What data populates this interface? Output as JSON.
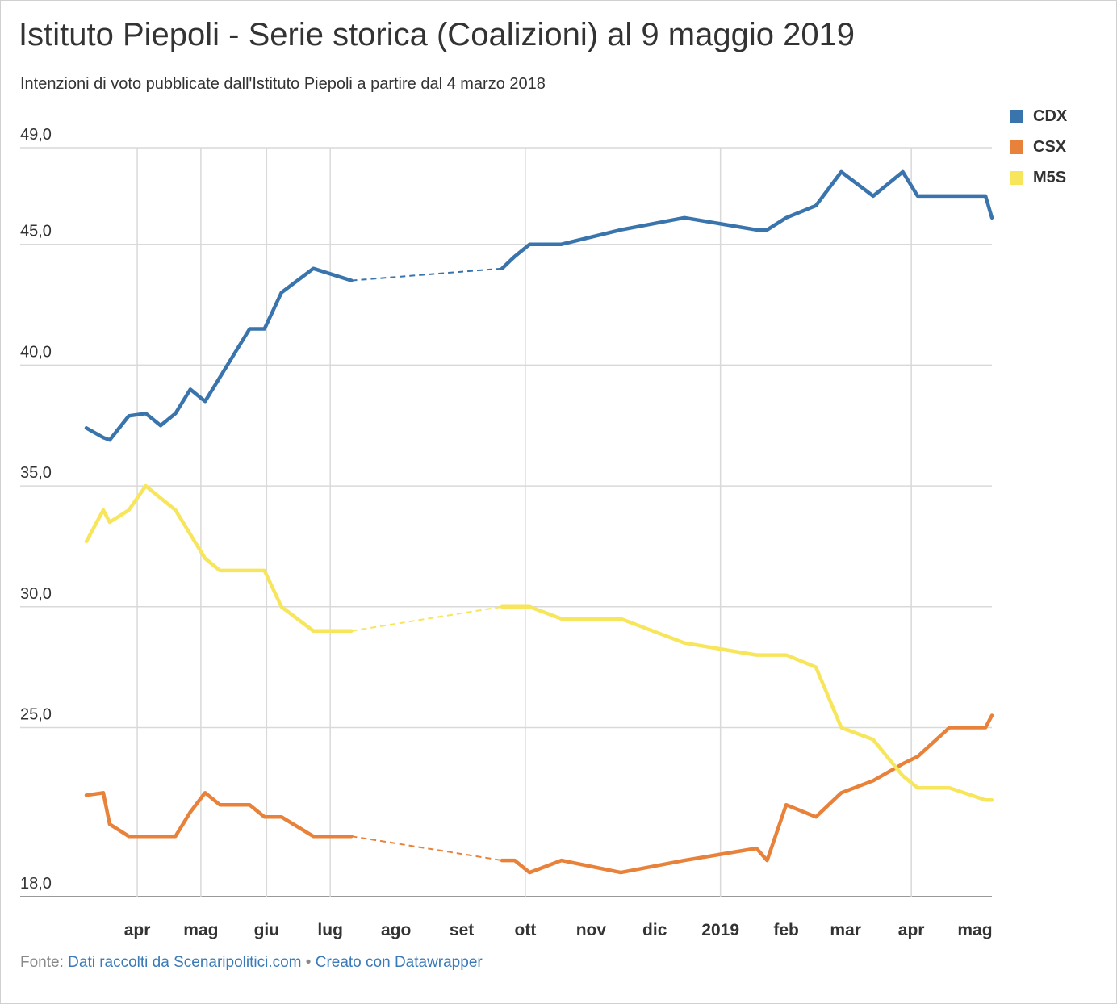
{
  "title": "Istituto Piepoli - Serie storica (Coalizioni) al 9 maggio 2019",
  "subtitle": "Intenzioni di voto pubblicate dall'Istituto Piepoli a partire dal 4 marzo 2018",
  "footer": {
    "prefix": "Fonte:",
    "source": "Dati raccolti da Scenaripolitici.com",
    "separator": "•",
    "credit": "Creato con Datawrapper"
  },
  "chart_data": {
    "type": "line",
    "ylim": [
      18,
      49
    ],
    "xlim": [
      "2018-03-08",
      "2019-05-09"
    ],
    "grid": true,
    "legend_position": "top-right",
    "y_ticks": [
      {
        "value": 49,
        "label": "49,0"
      },
      {
        "value": 45,
        "label": "45,0"
      },
      {
        "value": 40,
        "label": "40,0"
      },
      {
        "value": 35,
        "label": "35,0"
      },
      {
        "value": 30,
        "label": "30,0"
      },
      {
        "value": 25,
        "label": "25,0"
      },
      {
        "value": 18,
        "label": "18,0"
      }
    ],
    "x_ticks": [
      {
        "date": "2018-04-01",
        "label": "apr",
        "grid": true
      },
      {
        "date": "2018-05-01",
        "label": "mag",
        "grid": true
      },
      {
        "date": "2018-06-01",
        "label": "giu",
        "grid": true
      },
      {
        "date": "2018-07-01",
        "label": "lug",
        "grid": true
      },
      {
        "date": "2018-08-01",
        "label": "ago",
        "grid": false
      },
      {
        "date": "2018-09-01",
        "label": "set",
        "grid": false
      },
      {
        "date": "2018-10-01",
        "label": "ott",
        "grid": true
      },
      {
        "date": "2018-11-01",
        "label": "nov",
        "grid": false
      },
      {
        "date": "2018-12-01",
        "label": "dic",
        "grid": false
      },
      {
        "date": "2019-01-01",
        "label": "2019",
        "grid": true
      },
      {
        "date": "2019-02-01",
        "label": "feb",
        "grid": false
      },
      {
        "date": "2019-03-01",
        "label": "mar",
        "grid": false
      },
      {
        "date": "2019-04-01",
        "label": "apr",
        "grid": true
      },
      {
        "date": "2019-05-01",
        "label": "mag",
        "grid": false
      }
    ],
    "gap": [
      "2018-07-11",
      "2018-09-20"
    ],
    "series": [
      {
        "name": "CDX",
        "color": "#3a74ad",
        "points": [
          [
            "2018-03-08",
            37.4
          ],
          [
            "2018-03-16",
            37.0
          ],
          [
            "2018-03-19",
            36.9
          ],
          [
            "2018-03-28",
            37.9
          ],
          [
            "2018-04-05",
            38.0
          ],
          [
            "2018-04-12",
            37.5
          ],
          [
            "2018-04-19",
            38.0
          ],
          [
            "2018-04-26",
            39.0
          ],
          [
            "2018-05-03",
            38.5
          ],
          [
            "2018-05-10",
            39.5
          ],
          [
            "2018-05-24",
            41.5
          ],
          [
            "2018-05-31",
            41.5
          ],
          [
            "2018-06-08",
            43.0
          ],
          [
            "2018-06-23",
            44.0
          ],
          [
            "2018-07-11",
            43.5
          ],
          [
            "2018-09-20",
            44.0
          ],
          [
            "2018-09-26",
            44.5
          ],
          [
            "2018-10-03",
            45.0
          ],
          [
            "2018-10-18",
            45.0
          ],
          [
            "2018-11-15",
            45.6
          ],
          [
            "2018-12-15",
            46.1
          ],
          [
            "2019-01-18",
            45.6
          ],
          [
            "2019-01-23",
            45.6
          ],
          [
            "2019-02-01",
            46.1
          ],
          [
            "2019-02-15",
            46.6
          ],
          [
            "2019-02-27",
            48.0
          ],
          [
            "2019-03-14",
            47.0
          ],
          [
            "2019-03-28",
            48.0
          ],
          [
            "2019-04-04",
            47.0
          ],
          [
            "2019-04-19",
            47.0
          ],
          [
            "2019-05-06",
            47.0
          ],
          [
            "2019-05-09",
            46.1
          ]
        ]
      },
      {
        "name": "CSX",
        "color": "#e8823a",
        "points": [
          [
            "2018-03-08",
            22.2
          ],
          [
            "2018-03-16",
            22.3
          ],
          [
            "2018-03-19",
            21.0
          ],
          [
            "2018-03-28",
            20.5
          ],
          [
            "2018-04-05",
            20.5
          ],
          [
            "2018-04-12",
            20.5
          ],
          [
            "2018-04-19",
            20.5
          ],
          [
            "2018-04-26",
            21.5
          ],
          [
            "2018-05-03",
            22.3
          ],
          [
            "2018-05-10",
            21.8
          ],
          [
            "2018-05-24",
            21.8
          ],
          [
            "2018-05-31",
            21.3
          ],
          [
            "2018-06-08",
            21.3
          ],
          [
            "2018-06-23",
            20.5
          ],
          [
            "2018-07-11",
            20.5
          ],
          [
            "2018-09-20",
            19.5
          ],
          [
            "2018-09-26",
            19.5
          ],
          [
            "2018-10-03",
            19.0
          ],
          [
            "2018-10-18",
            19.5
          ],
          [
            "2018-11-15",
            19.0
          ],
          [
            "2018-12-15",
            19.5
          ],
          [
            "2019-01-18",
            20.0
          ],
          [
            "2019-01-23",
            19.5
          ],
          [
            "2019-02-01",
            21.8
          ],
          [
            "2019-02-15",
            21.3
          ],
          [
            "2019-02-27",
            22.3
          ],
          [
            "2019-03-14",
            22.8
          ],
          [
            "2019-03-28",
            23.5
          ],
          [
            "2019-04-04",
            23.8
          ],
          [
            "2019-04-19",
            25.0
          ],
          [
            "2019-05-06",
            25.0
          ],
          [
            "2019-05-09",
            25.5
          ]
        ]
      },
      {
        "name": "M5S",
        "color": "#f7e65c",
        "points": [
          [
            "2018-03-08",
            32.7
          ],
          [
            "2018-03-16",
            34.0
          ],
          [
            "2018-03-19",
            33.5
          ],
          [
            "2018-03-28",
            34.0
          ],
          [
            "2018-04-05",
            35.0
          ],
          [
            "2018-04-12",
            34.5
          ],
          [
            "2018-04-19",
            34.0
          ],
          [
            "2018-04-26",
            33.0
          ],
          [
            "2018-05-03",
            32.0
          ],
          [
            "2018-05-10",
            31.5
          ],
          [
            "2018-05-24",
            31.5
          ],
          [
            "2018-05-31",
            31.5
          ],
          [
            "2018-06-08",
            30.0
          ],
          [
            "2018-06-23",
            29.0
          ],
          [
            "2018-07-11",
            29.0
          ],
          [
            "2018-09-20",
            30.0
          ],
          [
            "2018-09-26",
            30.0
          ],
          [
            "2018-10-03",
            30.0
          ],
          [
            "2018-10-18",
            29.5
          ],
          [
            "2018-11-15",
            29.5
          ],
          [
            "2018-12-15",
            28.5
          ],
          [
            "2019-01-18",
            28.0
          ],
          [
            "2019-01-23",
            28.0
          ],
          [
            "2019-02-01",
            28.0
          ],
          [
            "2019-02-15",
            27.5
          ],
          [
            "2019-02-27",
            25.0
          ],
          [
            "2019-03-14",
            24.5
          ],
          [
            "2019-03-28",
            23.0
          ],
          [
            "2019-04-04",
            22.5
          ],
          [
            "2019-04-19",
            22.5
          ],
          [
            "2019-05-06",
            22.0
          ],
          [
            "2019-05-09",
            22.0
          ]
        ]
      }
    ]
  }
}
